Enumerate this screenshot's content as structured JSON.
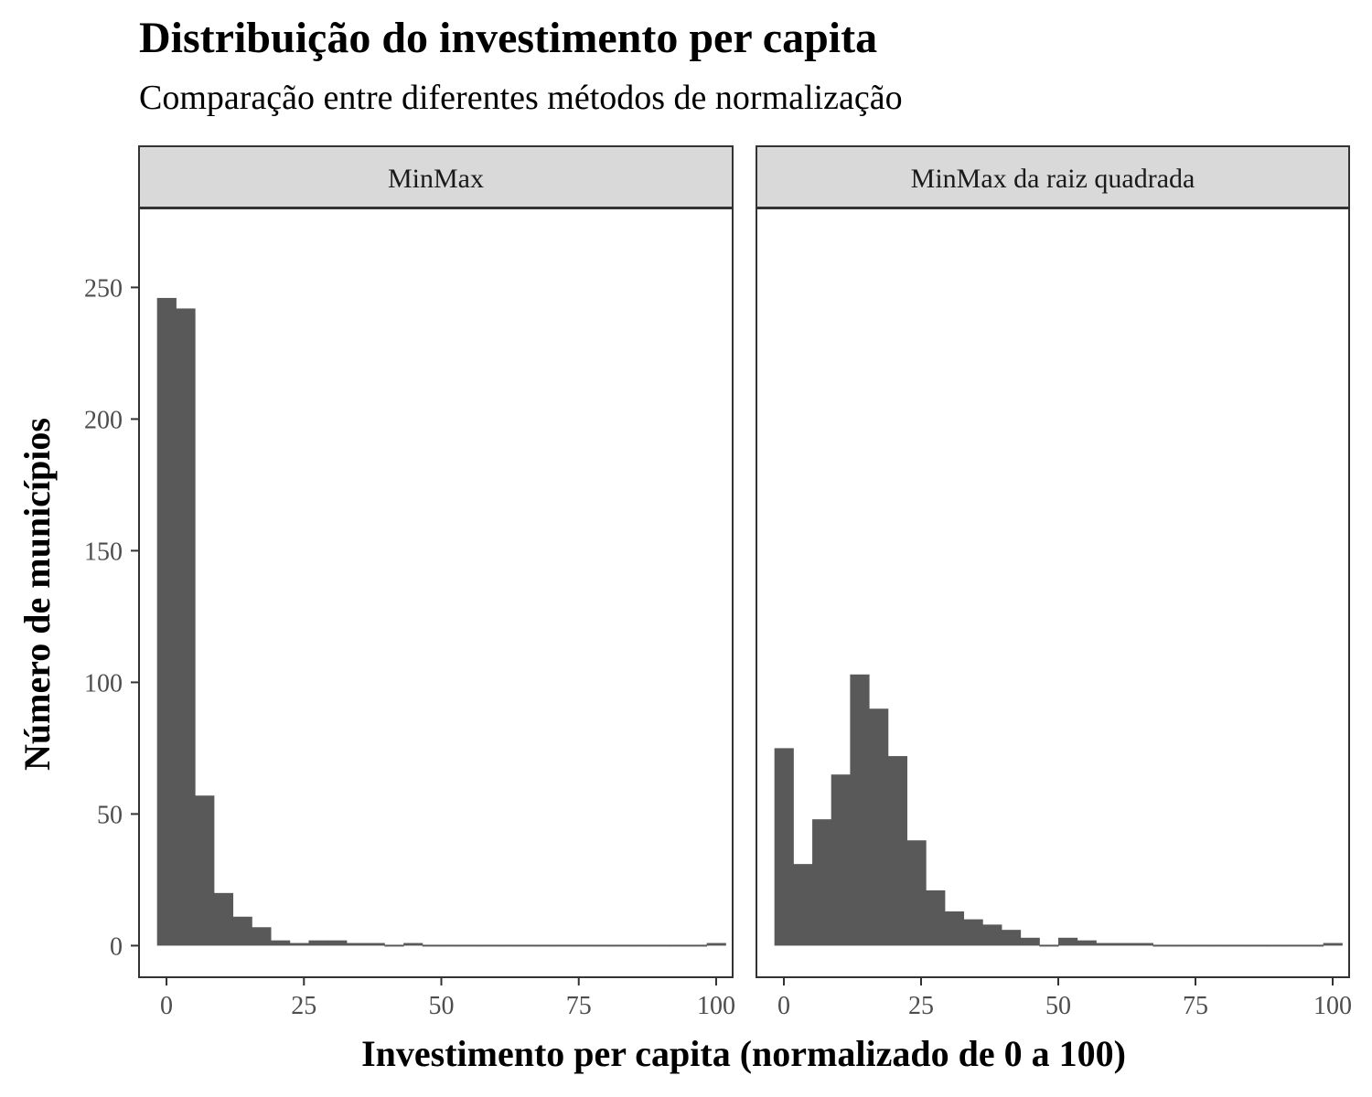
{
  "title": "Distribuição do investimento per capita",
  "subtitle": "Comparação entre diferentes métodos de normalização",
  "chart_data": {
    "type": "bar",
    "title": "Distribuição do investimento per capita",
    "subtitle": "Comparação entre diferentes métodos de normalização",
    "xlabel": "Investimento per capita (normalizado de 0 a 100)",
    "ylabel": "Número de municípios",
    "xlim": [
      -5,
      103
    ],
    "ylim": [
      -12,
      280
    ],
    "x_ticks": [
      0,
      25,
      50,
      75,
      100
    ],
    "x_tick_labels": [
      "0",
      "25",
      "50",
      "75",
      "100"
    ],
    "y_ticks": [
      0,
      50,
      100,
      150,
      200,
      250
    ],
    "y_tick_labels": [
      "0",
      "50",
      "100",
      "150",
      "200",
      "250"
    ],
    "bin_width": 3.448,
    "bar_color": "#595959",
    "strip_color": "#d9d9d9",
    "grid": false,
    "panels": [
      {
        "name": "MinMax",
        "bin_centers": [
          0,
          3.45,
          6.9,
          10.34,
          13.79,
          17.24,
          20.69,
          24.14,
          27.59,
          31.03,
          34.48,
          37.93,
          41.38,
          44.83,
          48.28,
          51.72,
          55.17,
          58.62,
          62.07,
          65.52,
          68.97,
          72.41,
          75.86,
          79.31,
          82.76,
          86.21,
          89.66,
          93.1,
          96.55,
          100
        ],
        "counts": [
          246,
          242,
          57,
          20,
          11,
          7,
          2,
          1,
          2,
          2,
          1,
          1,
          0,
          1,
          0,
          0,
          0,
          0,
          0,
          0,
          0,
          0,
          0,
          0,
          0,
          0,
          0,
          0,
          0,
          1
        ]
      },
      {
        "name": "MinMax da raiz quadrada",
        "bin_centers": [
          0,
          3.45,
          6.9,
          10.34,
          13.79,
          17.24,
          20.69,
          24.14,
          27.59,
          31.03,
          34.48,
          37.93,
          41.38,
          44.83,
          48.28,
          51.72,
          55.17,
          58.62,
          62.07,
          65.52,
          68.97,
          72.41,
          75.86,
          79.31,
          82.76,
          86.21,
          89.66,
          93.1,
          96.55,
          100
        ],
        "counts": [
          75,
          31,
          48,
          65,
          103,
          90,
          72,
          40,
          21,
          13,
          10,
          8,
          6,
          3,
          0,
          3,
          2,
          1,
          1,
          1,
          0,
          0,
          0,
          0,
          0,
          0,
          0,
          0,
          0,
          1
        ]
      }
    ]
  }
}
